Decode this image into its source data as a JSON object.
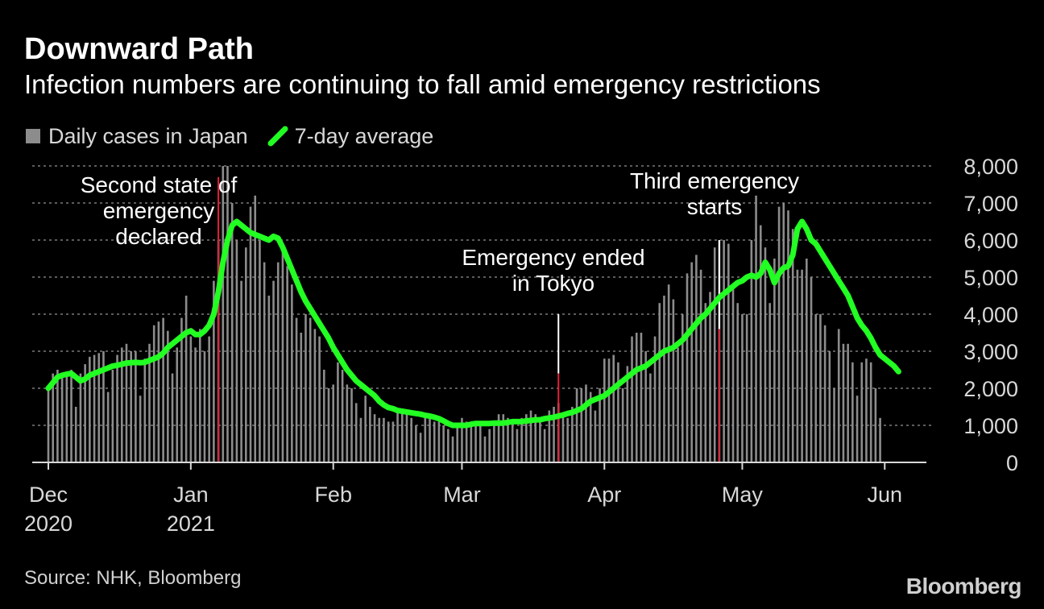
{
  "title": "Downward Path",
  "subtitle": "Infection numbers are continuing to fall amid emergency restrictions",
  "source": "Source: NHK, Bloomberg",
  "brand": "Bloomberg",
  "colors": {
    "bars": "#8c8c8c",
    "line": "#22ff22",
    "event_line": "#e2213a",
    "grid": "#7a7a7a",
    "text": "#d8d8d8"
  },
  "chart_data": {
    "type": "bar",
    "title": "Downward Path",
    "subtitle": "Infection numbers are continuing to fall amid emergency restrictions",
    "xlabel": "",
    "ylabel": "",
    "ylim": [
      0,
      8000
    ],
    "yticks": [
      0,
      1000,
      2000,
      3000,
      4000,
      5000,
      6000,
      7000,
      8000
    ],
    "ytick_labels": [
      "0",
      "1,000",
      "2,000",
      "3,000",
      "4,000",
      "5,000",
      "6,000",
      "7,000",
      "8,000"
    ],
    "grid": true,
    "legend": {
      "position": "top-left",
      "entries": [
        {
          "label": "Daily cases in Japan",
          "type": "bar",
          "color": "#8c8c8c"
        },
        {
          "label": "7-day average",
          "type": "line",
          "color": "#22ff22"
        }
      ]
    },
    "x_start": "2020-12-01",
    "x_ticks": [
      {
        "day": 0,
        "label": "Dec",
        "sublabel": "2020"
      },
      {
        "day": 31,
        "label": "Jan",
        "sublabel": "2021"
      },
      {
        "day": 62,
        "label": "Feb",
        "sublabel": ""
      },
      {
        "day": 90,
        "label": "Mar",
        "sublabel": ""
      },
      {
        "day": 121,
        "label": "Apr",
        "sublabel": ""
      },
      {
        "day": 151,
        "label": "May",
        "sublabel": ""
      },
      {
        "day": 182,
        "label": "Jun",
        "sublabel": ""
      }
    ],
    "annotations": [
      {
        "day": 37,
        "lines": [
          "Second state of",
          "emergency",
          "declared"
        ],
        "value": 7700
      },
      {
        "day": 111,
        "lines": [
          "Emergency ended",
          "in Tokyo"
        ],
        "value": 4000
      },
      {
        "day": 146,
        "lines": [
          "Third emergency",
          "starts"
        ],
        "value": 6000
      }
    ],
    "series": [
      {
        "name": "Daily cases in Japan",
        "type": "bar",
        "start_day": 0,
        "values": [
          2000,
          2400,
          2500,
          2350,
          2400,
          2500,
          1500,
          2400,
          2650,
          2850,
          2900,
          2950,
          3000,
          1900,
          2500,
          2900,
          3100,
          3200,
          3000,
          3000,
          1800,
          2800,
          3200,
          3700,
          3800,
          3900,
          3550,
          2400,
          3100,
          3900,
          4500,
          3400,
          3100,
          3600,
          3000,
          3400,
          4900,
          6000,
          8000,
          8000,
          7000,
          6000,
          4900,
          5800,
          6900,
          7200,
          6000,
          5400,
          4500,
          4900,
          5400,
          5900,
          5300,
          4800,
          3900,
          3500,
          4000,
          3900,
          3600,
          3400,
          2500,
          2000,
          2100,
          2700,
          2500,
          2100,
          2000,
          1600,
          1200,
          1800,
          1500,
          1300,
          1200,
          1200,
          1100,
          1100,
          1400,
          1400,
          1300,
          1200,
          1000,
          800,
          1200,
          1200,
          1100,
          1100,
          1000,
          900,
          700,
          1000,
          1200,
          1100,
          1000,
          1000,
          1000,
          700,
          900,
          1000,
          1300,
          1300,
          1200,
          1100,
          900,
          1200,
          1300,
          1400,
          1300,
          1200,
          900,
          1400,
          1500,
          1600,
          1300,
          1200,
          1500,
          2000,
          2000,
          2100,
          1900,
          1400,
          2000,
          2800,
          2800,
          2900,
          2700,
          2000,
          2600,
          3400,
          3500,
          3500,
          3000,
          2400,
          3400,
          4300,
          4500,
          4800,
          4400,
          3100,
          4000,
          5100,
          5400,
          5600,
          5200,
          4300,
          4600,
          5800,
          6000,
          6000,
          5900,
          4800,
          4300,
          4000,
          4000,
          6000,
          7200,
          6400,
          5800,
          4300,
          5500,
          6900,
          7000,
          6800,
          6300,
          5200,
          5200,
          5500,
          5000,
          4000,
          4000,
          3700,
          3000,
          2000,
          3600,
          3200,
          3200,
          2700,
          1800,
          2700,
          2800,
          2700,
          2000,
          1200
        ],
        "color": "#8c8c8c"
      },
      {
        "name": "7-day average",
        "type": "line",
        "start_day": 0,
        "values": [
          2000,
          2150,
          2300,
          2350,
          2380,
          2400,
          2300,
          2200,
          2250,
          2350,
          2400,
          2450,
          2500,
          2550,
          2600,
          2620,
          2650,
          2680,
          2690,
          2700,
          2690,
          2700,
          2750,
          2800,
          2850,
          2950,
          3100,
          3200,
          3300,
          3400,
          3500,
          3550,
          3450,
          3450,
          3550,
          3700,
          4000,
          4600,
          5400,
          6000,
          6400,
          6500,
          6400,
          6300,
          6200,
          6150,
          6100,
          6050,
          6000,
          6100,
          6050,
          5800,
          5500,
          5200,
          4900,
          4600,
          4350,
          4150,
          3950,
          3750,
          3550,
          3350,
          3100,
          2900,
          2700,
          2500,
          2350,
          2200,
          2100,
          2000,
          1900,
          1800,
          1650,
          1550,
          1480,
          1450,
          1400,
          1380,
          1360,
          1340,
          1320,
          1300,
          1270,
          1250,
          1220,
          1180,
          1120,
          1050,
          1000,
          1000,
          1000,
          1000,
          1030,
          1050,
          1050,
          1050,
          1050,
          1060,
          1060,
          1060,
          1080,
          1100,
          1100,
          1100,
          1120,
          1130,
          1150,
          1150,
          1180,
          1200,
          1220,
          1250,
          1280,
          1320,
          1350,
          1400,
          1450,
          1550,
          1650,
          1700,
          1750,
          1800,
          1900,
          2000,
          2100,
          2200,
          2300,
          2400,
          2500,
          2550,
          2600,
          2700,
          2800,
          2900,
          3000,
          3050,
          3100,
          3200,
          3300,
          3450,
          3600,
          3750,
          3900,
          4000,
          4150,
          4300,
          4450,
          4550,
          4650,
          4750,
          4850,
          4900,
          5000,
          5050,
          5000,
          5100,
          5400,
          5200,
          4850,
          5100,
          5250,
          5300,
          5600,
          6300,
          6500,
          6300,
          6000,
          5900,
          5700,
          5500,
          5300,
          5100,
          4900,
          4700,
          4500,
          4200,
          3900,
          3700,
          3550,
          3350,
          3100,
          2900,
          2800,
          2700,
          2600,
          2450
        ],
        "color": "#22ff22"
      }
    ]
  }
}
